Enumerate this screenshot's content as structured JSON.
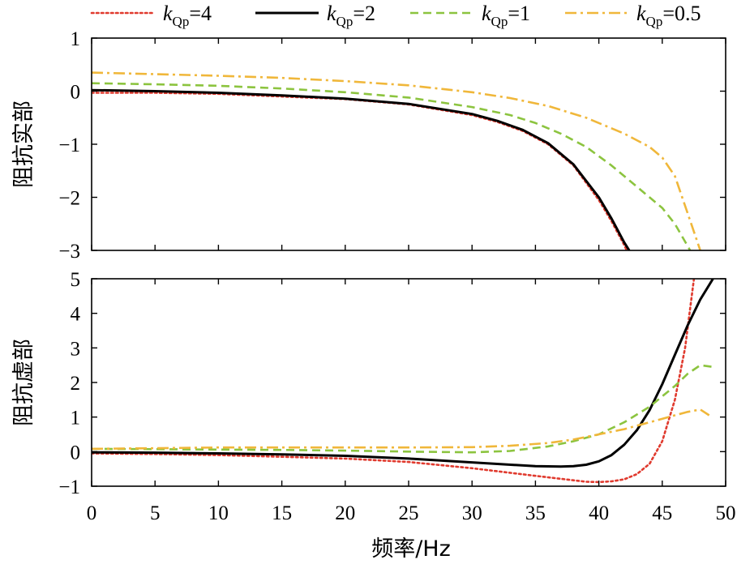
{
  "chart_data": {
    "type": "line",
    "xlabel": "频率/Hz",
    "xlim": [
      0,
      50
    ],
    "xticks": [
      "0",
      "5",
      "10",
      "15",
      "20",
      "25",
      "30",
      "35",
      "40",
      "45",
      "50"
    ],
    "legend": {
      "placement": "top",
      "entries": [
        {
          "prefix": "k",
          "sub": "Qp",
          "suffix": "=4"
        },
        {
          "prefix": "k",
          "sub": "Qp",
          "suffix": "=2"
        },
        {
          "prefix": "k",
          "sub": "Qp",
          "suffix": "=1"
        },
        {
          "prefix": "k",
          "sub": "Qp",
          "suffix": "=0.5"
        }
      ]
    },
    "series_styles": [
      {
        "color": "#e03a2e",
        "dash": "dot"
      },
      {
        "color": "#000000",
        "dash": "solid"
      },
      {
        "color": "#8cc43f",
        "dash": "dash"
      },
      {
        "color": "#f0b73a",
        "dash": "dashdot"
      }
    ],
    "panels": [
      {
        "ylabel": "阻抗实部",
        "ylim": [
          -3,
          1
        ],
        "yticks": [
          "1",
          "0",
          "−1",
          "−2",
          "−3"
        ],
        "series": [
          {
            "x": [
              0,
              5,
              10,
              15,
              20,
              25,
              30,
              32,
              34,
              36,
              38,
              40,
              41,
              42,
              42.2
            ],
            "y": [
              -0.03,
              -0.03,
              -0.05,
              -0.1,
              -0.15,
              -0.25,
              -0.45,
              -0.58,
              -0.75,
              -1.0,
              -1.4,
              -2.05,
              -2.45,
              -2.9,
              -3.0
            ]
          },
          {
            "x": [
              0,
              5,
              10,
              15,
              20,
              25,
              30,
              32,
              34,
              36,
              38,
              40,
              41,
              42,
              42.4
            ],
            "y": [
              0.02,
              0.0,
              -0.03,
              -0.08,
              -0.14,
              -0.24,
              -0.43,
              -0.56,
              -0.73,
              -0.98,
              -1.38,
              -2.0,
              -2.4,
              -2.85,
              -3.0
            ]
          },
          {
            "x": [
              0,
              5,
              10,
              15,
              20,
              25,
              30,
              33,
              35,
              37,
              39,
              41,
              43,
              45,
              46,
              47.2
            ],
            "y": [
              0.15,
              0.13,
              0.1,
              0.05,
              -0.02,
              -0.12,
              -0.3,
              -0.45,
              -0.6,
              -0.8,
              -1.05,
              -1.4,
              -1.8,
              -2.2,
              -2.5,
              -3.0
            ]
          },
          {
            "x": [
              0,
              5,
              10,
              15,
              20,
              25,
              30,
              33,
              36,
              39,
              42,
              44,
              45,
              46,
              47,
              48
            ],
            "y": [
              0.35,
              0.32,
              0.29,
              0.25,
              0.19,
              0.11,
              -0.02,
              -0.13,
              -0.28,
              -0.5,
              -0.8,
              -1.05,
              -1.25,
              -1.6,
              -2.3,
              -3.0
            ]
          }
        ]
      },
      {
        "ylabel": "阻抗虚部",
        "ylim": [
          -1,
          5
        ],
        "yticks": [
          "5",
          "4",
          "3",
          "2",
          "1",
          "0",
          "−1"
        ],
        "series": [
          {
            "x": [
              0,
              5,
              10,
              15,
              20,
              25,
              30,
              35,
              38,
              39,
              40,
              41,
              42,
              43,
              44,
              45,
              46,
              46.8,
              47.5
            ],
            "y": [
              -0.05,
              -0.07,
              -0.1,
              -0.15,
              -0.2,
              -0.3,
              -0.48,
              -0.7,
              -0.83,
              -0.87,
              -0.88,
              -0.86,
              -0.8,
              -0.65,
              -0.35,
              0.3,
              1.5,
              3.0,
              5.0
            ]
          },
          {
            "x": [
              0,
              5,
              10,
              15,
              20,
              25,
              30,
              35,
              37,
              38,
              39,
              40,
              41,
              42,
              43,
              44,
              45,
              46,
              47,
              48,
              49
            ],
            "y": [
              -0.02,
              -0.03,
              -0.05,
              -0.08,
              -0.12,
              -0.2,
              -0.31,
              -0.42,
              -0.43,
              -0.42,
              -0.38,
              -0.28,
              -0.1,
              0.2,
              0.62,
              1.2,
              1.95,
              2.8,
              3.65,
              4.4,
              5.0
            ]
          },
          {
            "x": [
              0,
              5,
              10,
              15,
              20,
              25,
              30,
              33,
              36,
              38,
              40,
              42,
              44,
              46,
              47,
              48,
              49
            ],
            "y": [
              0.08,
              0.07,
              0.06,
              0.05,
              0.03,
              0.0,
              -0.02,
              0.02,
              0.15,
              0.3,
              0.5,
              0.85,
              1.3,
              1.9,
              2.25,
              2.5,
              2.45
            ]
          },
          {
            "x": [
              0,
              5,
              10,
              15,
              20,
              25,
              30,
              33,
              36,
              38,
              40,
              42,
              44,
              46,
              47,
              48,
              48.7
            ],
            "y": [
              0.08,
              0.1,
              0.12,
              0.12,
              0.12,
              0.12,
              0.13,
              0.17,
              0.25,
              0.35,
              0.5,
              0.65,
              0.85,
              1.05,
              1.15,
              1.22,
              1.05
            ]
          }
        ]
      }
    ]
  }
}
